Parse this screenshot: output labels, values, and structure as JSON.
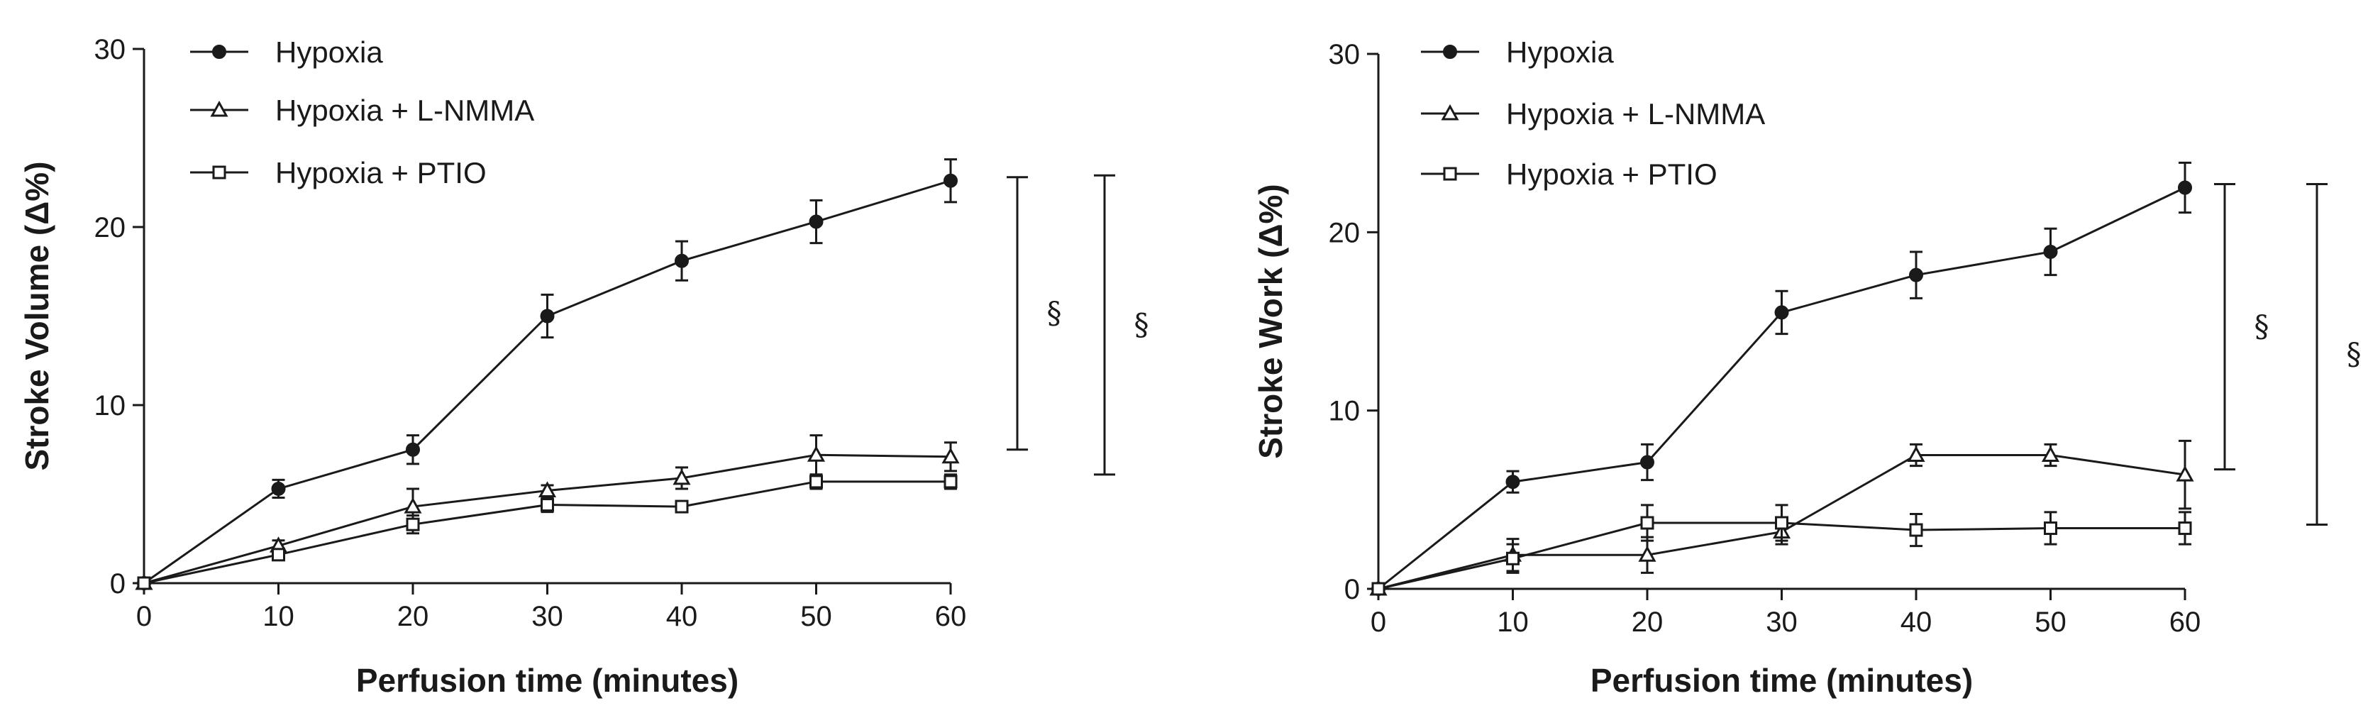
{
  "chart_data": [
    {
      "type": "line",
      "title": "",
      "xlabel": "Perfusion time (minutes)",
      "ylabel": "Stroke Volume (Δ%)",
      "x": [
        0,
        10,
        20,
        30,
        40,
        50,
        60
      ],
      "xlim": [
        0,
        60
      ],
      "ylim": [
        0,
        30
      ],
      "xticks": [
        "0",
        "10",
        "20",
        "30",
        "40",
        "50",
        "60"
      ],
      "yticks": [
        "0",
        "10",
        "20",
        "30"
      ],
      "legend": "top-left",
      "series": [
        {
          "name": "Hypoxia",
          "marker": "circle",
          "values": [
            0,
            5.3,
            7.5,
            15.0,
            18.1,
            20.3,
            22.6
          ],
          "errors": [
            0,
            0.5,
            0.8,
            1.2,
            1.1,
            1.2,
            1.2
          ]
        },
        {
          "name": "Hypoxia + L-NMMA",
          "marker": "triangle",
          "values": [
            0,
            2.1,
            4.3,
            5.2,
            5.9,
            7.2,
            7.1
          ],
          "errors": [
            0,
            0.3,
            1.0,
            0.3,
            0.6,
            1.1,
            0.8
          ]
        },
        {
          "name": "Hypoxia + PTIO",
          "marker": "square",
          "values": [
            0,
            1.6,
            3.3,
            4.4,
            4.3,
            5.7,
            5.7
          ],
          "errors": [
            0,
            0.3,
            0.5,
            0.4,
            0.3,
            0.4,
            0.4
          ]
        }
      ],
      "significance": [
        {
          "label": "§",
          "from": 7.5,
          "to": 22.8
        },
        {
          "label": "§",
          "from": 6.1,
          "to": 22.9
        }
      ]
    },
    {
      "type": "line",
      "title": "",
      "xlabel": "Perfusion time (minutes)",
      "ylabel": "Stroke Work (Δ%)",
      "x": [
        0,
        10,
        20,
        30,
        40,
        50,
        60
      ],
      "xlim": [
        0,
        60
      ],
      "ylim": [
        0,
        30
      ],
      "xticks": [
        "0",
        "10",
        "20",
        "30",
        "40",
        "50",
        "60"
      ],
      "yticks": [
        "0",
        "10",
        "20",
        "30"
      ],
      "legend": "top-left",
      "series": [
        {
          "name": "Hypoxia",
          "marker": "circle",
          "values": [
            0,
            6.0,
            7.1,
            15.5,
            17.6,
            18.9,
            22.5
          ],
          "errors": [
            0,
            0.6,
            1.0,
            1.2,
            1.3,
            1.3,
            1.4
          ]
        },
        {
          "name": "Hypoxia + L-NMMA",
          "marker": "triangle",
          "values": [
            0,
            1.9,
            1.9,
            3.2,
            7.5,
            7.5,
            6.4
          ],
          "errors": [
            0,
            0.9,
            1.0,
            0.7,
            0.6,
            0.6,
            1.9
          ]
        },
        {
          "name": "Hypoxia + PTIO",
          "marker": "square",
          "values": [
            0,
            1.7,
            3.7,
            3.7,
            3.3,
            3.4,
            3.4
          ],
          "errors": [
            0,
            0.8,
            1.0,
            1.0,
            0.9,
            0.9,
            0.9
          ]
        }
      ],
      "significance": [
        {
          "label": "§",
          "from": 6.7,
          "to": 22.7
        },
        {
          "label": "§",
          "from": 3.6,
          "to": 22.7
        }
      ]
    }
  ]
}
